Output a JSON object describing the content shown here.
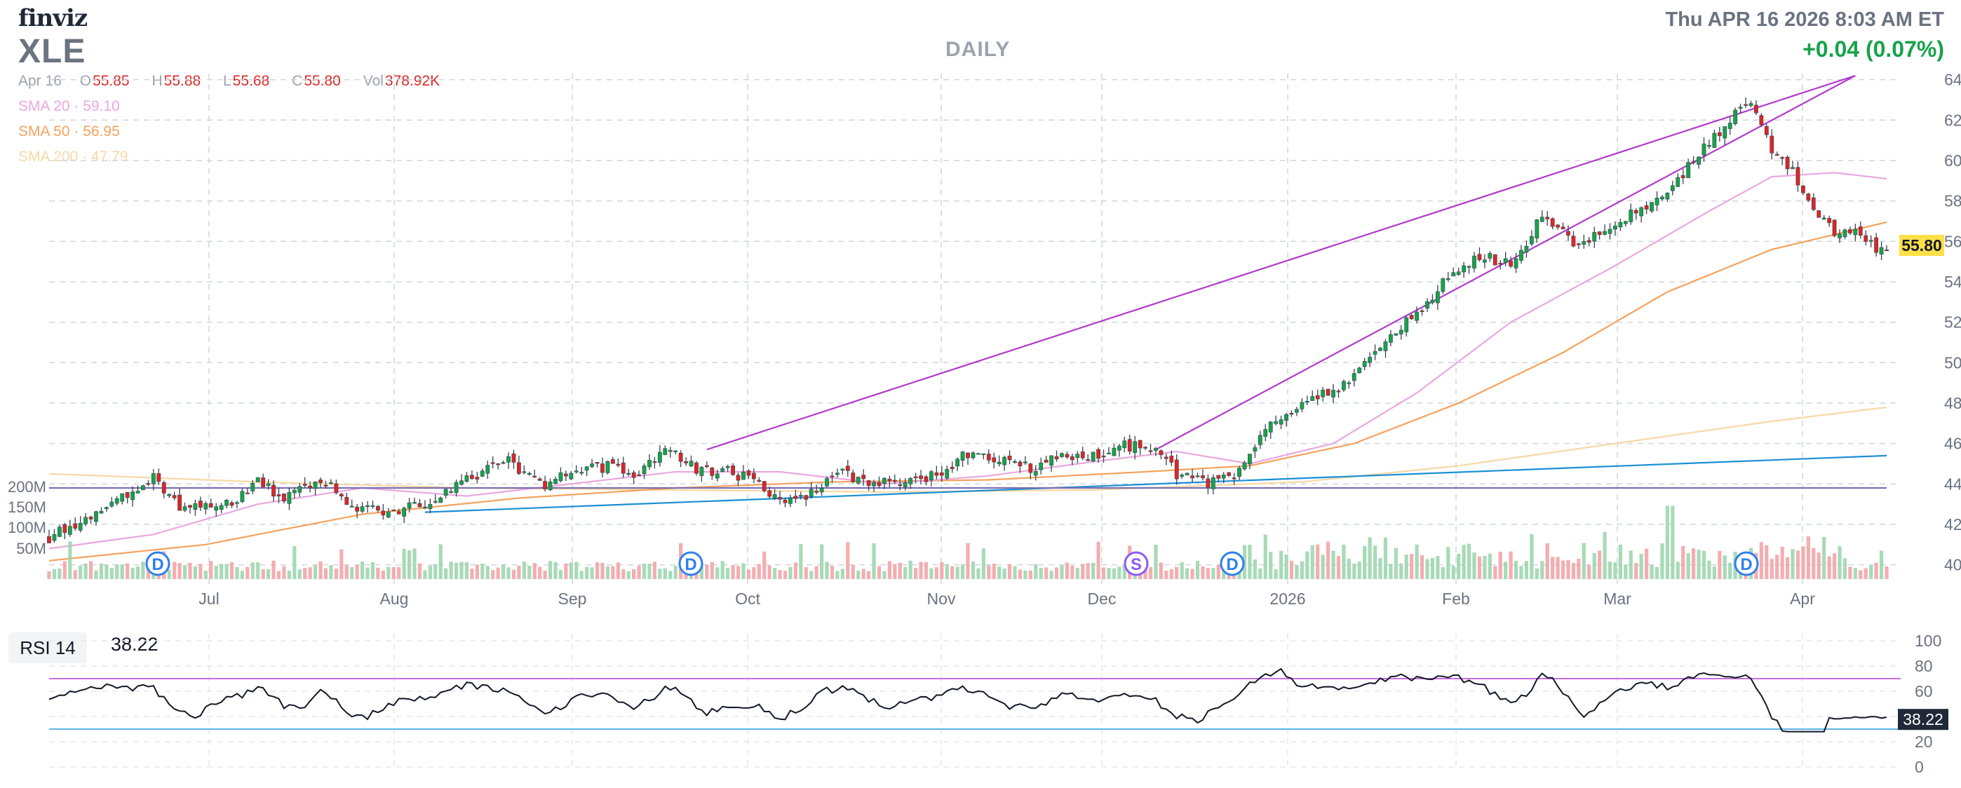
{
  "header": {
    "logo": "finviz",
    "ticker": "XLE",
    "timeframe": "DAILY",
    "datetime": "Thu APR 16 2026 8:03 AM ET",
    "change": "+0.04 (0.07%)"
  },
  "ohlc": {
    "date": "Apr 16",
    "open_label": "O",
    "open": "55.85",
    "high_label": "H",
    "high": "55.88",
    "low_label": "L",
    "low": "55.68",
    "close_label": "C",
    "close": "55.80",
    "vol_label": "Vol",
    "vol": "378.92K"
  },
  "indicators": [
    {
      "name": "SMA 20",
      "value": "59.10",
      "color": "#e9a8e0"
    },
    {
      "name": "SMA 50",
      "value": "56.95",
      "color": "#f5a25d"
    },
    {
      "name": "SMA 200",
      "value": "47.79",
      "color": "#f6d9a6"
    }
  ],
  "price_label": "55.80",
  "rsi": {
    "label": "RSI 14",
    "value": "38.22",
    "badge": "38.22"
  },
  "events": [
    {
      "letter": "D",
      "x_month": "Jun"
    },
    {
      "letter": "D",
      "x_month": "Sep"
    },
    {
      "letter": "S",
      "x_month": "Dec"
    },
    {
      "letter": "D",
      "x_month": "Dec"
    },
    {
      "letter": "D",
      "x_month": "Mar"
    }
  ],
  "colors": {
    "up": "#16a34a",
    "down": "#dc2626",
    "trend": "#b13bc9",
    "support": "#1a8fd6",
    "flat": "#7c6fb0",
    "rsi_band_hi": "#c86de0",
    "rsi_band_lo": "#5ab5e8"
  },
  "chart_data": {
    "type": "candlestick",
    "x_tick_labels": [
      "Jul",
      "Aug",
      "Sep",
      "Oct",
      "Nov",
      "Dec",
      "2026",
      "Feb",
      "Mar",
      "Apr"
    ],
    "y_tick_labels": [
      "40.00",
      "42.00",
      "44.00",
      "46.00",
      "48.00",
      "50.00",
      "52.00",
      "54.00",
      "56.00",
      "58.00",
      "60.00",
      "62.00",
      "64.00"
    ],
    "ylim": [
      39.5,
      64.3
    ],
    "volume_tick_labels": [
      "50M",
      "100M",
      "150M",
      "200M"
    ],
    "rsi_tick_labels": [
      "0",
      "20",
      "40",
      "60",
      "80",
      "100"
    ],
    "rsi_levels": [
      70,
      30
    ],
    "grid": true,
    "close_anchors": [
      [
        0,
        41.3
      ],
      [
        10,
        42.8
      ],
      [
        20,
        44.3
      ],
      [
        25,
        42.9
      ],
      [
        35,
        43.1
      ],
      [
        40,
        44.3
      ],
      [
        45,
        43.2
      ],
      [
        52,
        44.3
      ],
      [
        58,
        42.8
      ],
      [
        65,
        42.7
      ],
      [
        72,
        42.9
      ],
      [
        80,
        44.3
      ],
      [
        88,
        45.1
      ],
      [
        95,
        44.0
      ],
      [
        102,
        44.7
      ],
      [
        108,
        44.9
      ],
      [
        112,
        44.2
      ],
      [
        118,
        45.8
      ],
      [
        124,
        44.7
      ],
      [
        130,
        44.6
      ],
      [
        136,
        44.1
      ],
      [
        140,
        43.0
      ],
      [
        146,
        43.5
      ],
      [
        152,
        44.5
      ],
      [
        158,
        44.1
      ],
      [
        164,
        44.0
      ],
      [
        170,
        44.5
      ],
      [
        176,
        45.5
      ],
      [
        182,
        45.2
      ],
      [
        188,
        44.8
      ],
      [
        194,
        45.4
      ],
      [
        200,
        45.4
      ],
      [
        206,
        45.9
      ],
      [
        212,
        45.8
      ],
      [
        216,
        44.5
      ],
      [
        222,
        44.0
      ],
      [
        228,
        44.6
      ],
      [
        232,
        46.5
      ],
      [
        238,
        47.5
      ],
      [
        244,
        48.5
      ],
      [
        250,
        49.2
      ],
      [
        256,
        51.0
      ],
      [
        262,
        52.5
      ],
      [
        268,
        54.2
      ],
      [
        274,
        55.3
      ],
      [
        280,
        54.8
      ],
      [
        286,
        57.2
      ],
      [
        292,
        56.0
      ],
      [
        298,
        56.3
      ],
      [
        304,
        57.5
      ],
      [
        310,
        58.4
      ],
      [
        316,
        60.3
      ],
      [
        322,
        62.0
      ],
      [
        326,
        63.0
      ],
      [
        330,
        60.5
      ],
      [
        334,
        59.5
      ],
      [
        338,
        57.5
      ],
      [
        342,
        56.4
      ],
      [
        346,
        56.6
      ],
      [
        350,
        55.6
      ],
      [
        352,
        55.8
      ]
    ],
    "sma20_anchors": [
      [
        0,
        40.8
      ],
      [
        20,
        41.5
      ],
      [
        40,
        43.0
      ],
      [
        60,
        43.8
      ],
      [
        80,
        43.4
      ],
      [
        100,
        44.0
      ],
      [
        120,
        44.6
      ],
      [
        140,
        44.6
      ],
      [
        160,
        44.0
      ],
      [
        180,
        44.4
      ],
      [
        200,
        45.1
      ],
      [
        216,
        45.6
      ],
      [
        230,
        45.0
      ],
      [
        246,
        46.0
      ],
      [
        262,
        48.5
      ],
      [
        280,
        52.0
      ],
      [
        300,
        54.8
      ],
      [
        318,
        57.5
      ],
      [
        330,
        59.2
      ],
      [
        342,
        59.4
      ],
      [
        352,
        59.1
      ]
    ],
    "sma50_anchors": [
      [
        0,
        40.2
      ],
      [
        30,
        41.0
      ],
      [
        60,
        42.5
      ],
      [
        90,
        43.3
      ],
      [
        120,
        43.8
      ],
      [
        150,
        44.1
      ],
      [
        180,
        44.2
      ],
      [
        210,
        44.6
      ],
      [
        230,
        44.9
      ],
      [
        250,
        46.0
      ],
      [
        270,
        48.0
      ],
      [
        290,
        50.5
      ],
      [
        310,
        53.5
      ],
      [
        330,
        55.6
      ],
      [
        352,
        56.95
      ]
    ],
    "sma200_anchors": [
      [
        0,
        44.5
      ],
      [
        40,
        44.1
      ],
      [
        80,
        43.8
      ],
      [
        120,
        43.7
      ],
      [
        160,
        43.6
      ],
      [
        200,
        43.7
      ],
      [
        240,
        44.1
      ],
      [
        270,
        44.9
      ],
      [
        300,
        46.0
      ],
      [
        330,
        47.1
      ],
      [
        352,
        47.79
      ]
    ],
    "trendlines": [
      {
        "kind": "resistance",
        "from": [
          126,
          45.7
        ],
        "to": [
          346,
          64.2
        ]
      },
      {
        "kind": "resistance",
        "from": [
          212,
          45.7
        ],
        "to": [
          346,
          64.2
        ]
      },
      {
        "kind": "support",
        "from": [
          72,
          42.6
        ],
        "to": [
          352,
          45.4
        ]
      },
      {
        "kind": "horizontal",
        "from": [
          0,
          43.8
        ],
        "to": [
          352,
          43.8
        ]
      }
    ]
  }
}
